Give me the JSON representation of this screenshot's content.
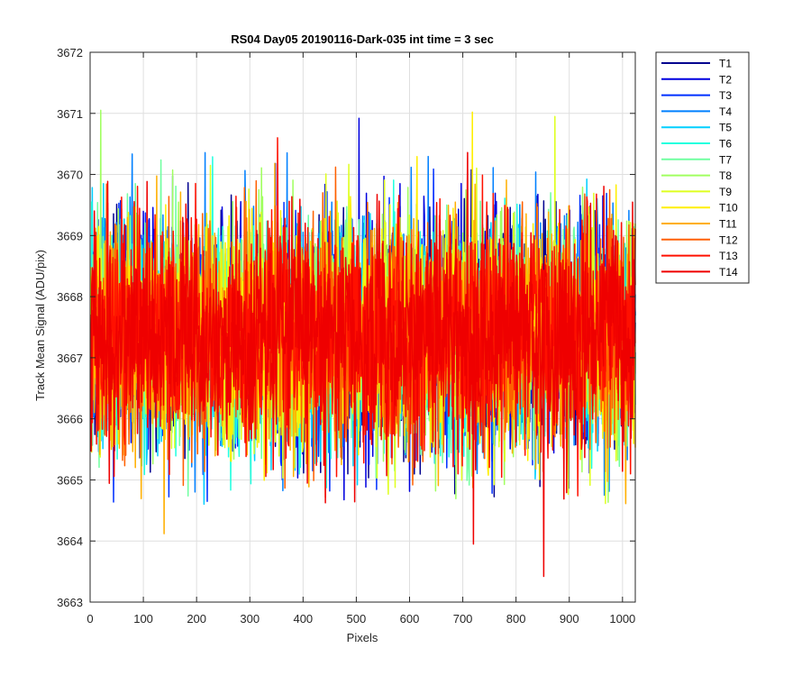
{
  "chart_data": {
    "type": "line",
    "title": "RS04 Day05 20190116-Dark-035 int time = 3 sec",
    "xlabel": "Pixels",
    "ylabel": "Track Mean Signal (ADU/pix)",
    "xlim": [
      0,
      1024
    ],
    "ylim": [
      3663,
      3672
    ],
    "xticks": [
      0,
      100,
      200,
      300,
      400,
      500,
      600,
      700,
      800,
      900,
      1000
    ],
    "yticks": [
      3663,
      3664,
      3665,
      3666,
      3667,
      3668,
      3669,
      3670,
      3671,
      3672
    ],
    "grid": true,
    "legend_position": "outside-right",
    "noise_model": {
      "mean": 3667.4,
      "std": 1.05,
      "points_per_series": 1024,
      "summary": "14 overlapping noisy dark-frame track traces fluctuating around 3667.4 ADU/pix across pixels 1-1024"
    },
    "series": [
      {
        "name": "T1",
        "color": "#00008F"
      },
      {
        "name": "T2",
        "color": "#0000DF"
      },
      {
        "name": "T3",
        "color": "#0030FF"
      },
      {
        "name": "T4",
        "color": "#0080FF"
      },
      {
        "name": "T5",
        "color": "#00CFFF"
      },
      {
        "name": "T6",
        "color": "#20FFDF"
      },
      {
        "name": "T7",
        "color": "#70FFA0"
      },
      {
        "name": "T8",
        "color": "#A0FF60"
      },
      {
        "name": "T9",
        "color": "#DFFF20"
      },
      {
        "name": "T10",
        "color": "#FFEF00"
      },
      {
        "name": "T11",
        "color": "#FFAF00"
      },
      {
        "name": "T12",
        "color": "#FF6000"
      },
      {
        "name": "T13",
        "color": "#FF1000"
      },
      {
        "name": "T14",
        "color": "#EF0000"
      }
    ],
    "annotated_extremes": [
      {
        "series": "T14",
        "x": 852,
        "y": 3663.42
      },
      {
        "series": "T14",
        "x": 720,
        "y": 3663.95
      },
      {
        "series": "T11",
        "x": 139,
        "y": 3664.12
      },
      {
        "series": "T2",
        "x": 505,
        "y": 3670.92
      },
      {
        "series": "T10",
        "x": 718,
        "y": 3671.02
      },
      {
        "series": "T8",
        "x": 20,
        "y": 3671.05
      },
      {
        "series": "T9",
        "x": 873,
        "y": 3670.95
      },
      {
        "series": "T13",
        "x": 352,
        "y": 3670.6
      }
    ]
  }
}
